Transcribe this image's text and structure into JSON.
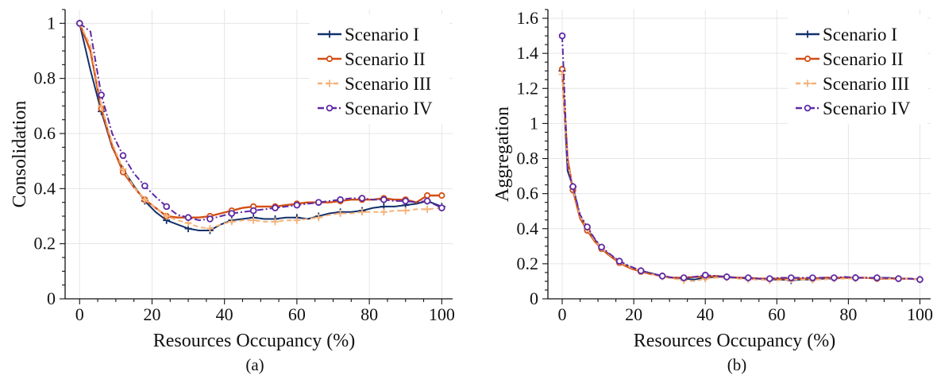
{
  "colors": {
    "scenario_1": "#12306b",
    "scenario_2": "#d34f14",
    "scenario_3": "#f5b27a",
    "scenario_4": "#5e2aa6"
  },
  "chart_data": [
    {
      "type": "line",
      "caption": "(a)",
      "xlabel": "Resources Occupancy (%)",
      "ylabel": "Consolidation",
      "xlim": [
        -4,
        103
      ],
      "ylim": [
        0,
        1.05
      ],
      "xticks": [
        0,
        20,
        40,
        60,
        80,
        100
      ],
      "yticks": [
        0,
        0.2,
        0.4,
        0.6,
        0.8,
        1
      ],
      "ytick_labels": [
        "0",
        "0.2",
        "0.4",
        "0.6",
        "0.8",
        "1"
      ],
      "grid": true,
      "legend_position": "top-right",
      "series": [
        {
          "name": "Scenario I",
          "marker": "plus",
          "dash": "solid",
          "x": [
            0,
            3,
            6,
            9,
            12,
            15,
            18,
            21,
            24,
            27,
            30,
            33,
            36,
            39,
            42,
            45,
            48,
            51,
            54,
            57,
            60,
            63,
            66,
            69,
            72,
            75,
            78,
            81,
            84,
            87,
            90,
            93,
            96,
            100
          ],
          "y": [
            1.0,
            0.83,
            0.68,
            0.55,
            0.47,
            0.41,
            0.355,
            0.315,
            0.285,
            0.27,
            0.255,
            0.248,
            0.248,
            0.27,
            0.285,
            0.29,
            0.295,
            0.29,
            0.29,
            0.295,
            0.295,
            0.29,
            0.3,
            0.31,
            0.315,
            0.315,
            0.32,
            0.33,
            0.335,
            0.335,
            0.34,
            0.345,
            0.355,
            0.335
          ]
        },
        {
          "name": "Scenario II",
          "marker": "circle-filled",
          "dash": "solid",
          "x": [
            0,
            3,
            6,
            9,
            12,
            15,
            18,
            21,
            24,
            27,
            30,
            33,
            36,
            39,
            42,
            45,
            48,
            51,
            54,
            57,
            60,
            63,
            66,
            69,
            72,
            75,
            78,
            81,
            84,
            87,
            90,
            93,
            96,
            100
          ],
          "y": [
            1.0,
            0.9,
            0.69,
            0.555,
            0.46,
            0.405,
            0.36,
            0.33,
            0.3,
            0.295,
            0.295,
            0.295,
            0.3,
            0.31,
            0.32,
            0.33,
            0.335,
            0.335,
            0.335,
            0.34,
            0.345,
            0.35,
            0.35,
            0.35,
            0.355,
            0.36,
            0.36,
            0.36,
            0.365,
            0.36,
            0.36,
            0.35,
            0.375,
            0.375
          ]
        },
        {
          "name": "Scenario III",
          "marker": "plus",
          "dash": "dashed",
          "x": [
            0,
            3,
            6,
            9,
            12,
            15,
            18,
            21,
            24,
            27,
            30,
            33,
            36,
            39,
            42,
            45,
            48,
            51,
            54,
            57,
            60,
            63,
            66,
            69,
            72,
            75,
            78,
            81,
            84,
            87,
            90,
            93,
            96,
            100
          ],
          "y": [
            1.0,
            0.92,
            0.7,
            0.565,
            0.47,
            0.405,
            0.36,
            0.33,
            0.3,
            0.285,
            0.275,
            0.26,
            0.255,
            0.27,
            0.28,
            0.285,
            0.285,
            0.28,
            0.28,
            0.285,
            0.285,
            0.29,
            0.295,
            0.305,
            0.31,
            0.31,
            0.315,
            0.315,
            0.315,
            0.32,
            0.32,
            0.325,
            0.325,
            0.33
          ]
        },
        {
          "name": "Scenario IV",
          "marker": "circle-open",
          "dash": "dashdot",
          "x": [
            0,
            3,
            6,
            9,
            12,
            15,
            18,
            21,
            24,
            27,
            30,
            33,
            36,
            39,
            42,
            45,
            48,
            51,
            54,
            57,
            60,
            63,
            66,
            69,
            72,
            75,
            78,
            81,
            84,
            87,
            90,
            93,
            96,
            100
          ],
          "y": [
            1.0,
            0.97,
            0.74,
            0.6,
            0.52,
            0.455,
            0.41,
            0.37,
            0.335,
            0.305,
            0.295,
            0.285,
            0.29,
            0.3,
            0.31,
            0.315,
            0.32,
            0.325,
            0.33,
            0.335,
            0.34,
            0.345,
            0.35,
            0.355,
            0.36,
            0.365,
            0.365,
            0.36,
            0.36,
            0.355,
            0.355,
            0.35,
            0.355,
            0.33
          ]
        }
      ]
    },
    {
      "type": "line",
      "caption": "(b)",
      "xlabel": "Resources Occupancy (%)",
      "ylabel": "Aggregation",
      "xlim": [
        -4,
        103
      ],
      "ylim": [
        0,
        1.65
      ],
      "xticks": [
        0,
        20,
        40,
        60,
        80,
        100
      ],
      "yticks": [
        0,
        0.2,
        0.4,
        0.6,
        0.8,
        1,
        1.2,
        1.4,
        1.6
      ],
      "ytick_labels": [
        "0",
        "0.2",
        "0.4",
        "0.6",
        "0.8",
        "1",
        "1.2",
        "1.4",
        "1.6"
      ],
      "grid": true,
      "legend_position": "top-right",
      "series": [
        {
          "name": "Scenario I",
          "marker": "plus",
          "dash": "solid",
          "x": [
            0,
            1.5,
            3,
            5,
            7,
            9,
            11,
            13,
            16,
            19,
            22,
            25,
            28,
            31,
            34,
            37,
            40,
            43,
            46,
            49,
            52,
            55,
            58,
            61,
            64,
            67,
            70,
            73,
            76,
            79,
            82,
            85,
            88,
            91,
            94,
            97,
            100
          ],
          "y": [
            1.3,
            0.73,
            0.64,
            0.47,
            0.4,
            0.34,
            0.29,
            0.255,
            0.21,
            0.18,
            0.16,
            0.145,
            0.13,
            0.12,
            0.115,
            0.11,
            0.12,
            0.125,
            0.125,
            0.12,
            0.115,
            0.115,
            0.11,
            0.11,
            0.105,
            0.11,
            0.11,
            0.115,
            0.115,
            0.12,
            0.12,
            0.12,
            0.12,
            0.12,
            0.115,
            0.115,
            0.11
          ]
        },
        {
          "name": "Scenario II",
          "marker": "circle-filled",
          "dash": "solid",
          "x": [
            0,
            1.5,
            3,
            5,
            7,
            9,
            11,
            13,
            16,
            19,
            22,
            25,
            28,
            31,
            34,
            37,
            40,
            43,
            46,
            49,
            52,
            55,
            58,
            61,
            64,
            67,
            70,
            73,
            76,
            79,
            82,
            85,
            88,
            91,
            94,
            97,
            100
          ],
          "y": [
            1.31,
            0.8,
            0.62,
            0.46,
            0.39,
            0.33,
            0.285,
            0.25,
            0.205,
            0.175,
            0.155,
            0.14,
            0.13,
            0.12,
            0.12,
            0.125,
            0.125,
            0.13,
            0.125,
            0.12,
            0.12,
            0.115,
            0.115,
            0.115,
            0.115,
            0.115,
            0.115,
            0.12,
            0.12,
            0.12,
            0.12,
            0.12,
            0.115,
            0.115,
            0.115,
            0.115,
            0.11
          ]
        },
        {
          "name": "Scenario III",
          "marker": "plus",
          "dash": "dashed",
          "x": [
            0,
            1.5,
            3,
            5,
            7,
            9,
            11,
            13,
            16,
            19,
            22,
            25,
            28,
            31,
            34,
            37,
            40,
            43,
            46,
            49,
            52,
            55,
            58,
            61,
            64,
            67,
            70,
            73,
            76,
            79,
            82,
            85,
            88,
            91,
            94,
            97,
            100
          ],
          "y": [
            1.28,
            0.78,
            0.63,
            0.47,
            0.4,
            0.335,
            0.29,
            0.255,
            0.21,
            0.18,
            0.16,
            0.14,
            0.125,
            0.115,
            0.105,
            0.1,
            0.115,
            0.12,
            0.12,
            0.115,
            0.11,
            0.11,
            0.105,
            0.105,
            0.11,
            0.11,
            0.11,
            0.11,
            0.115,
            0.115,
            0.115,
            0.12,
            0.12,
            0.115,
            0.115,
            0.115,
            0.11
          ]
        },
        {
          "name": "Scenario IV",
          "marker": "circle-open",
          "dash": "dashdot",
          "x": [
            0,
            1.5,
            3,
            5,
            7,
            9,
            11,
            13,
            16,
            19,
            22,
            25,
            28,
            31,
            34,
            37,
            40,
            43,
            46,
            49,
            52,
            55,
            58,
            61,
            64,
            67,
            70,
            73,
            76,
            79,
            82,
            85,
            88,
            91,
            94,
            97,
            100
          ],
          "y": [
            1.5,
            0.74,
            0.64,
            0.48,
            0.41,
            0.345,
            0.295,
            0.26,
            0.215,
            0.185,
            0.16,
            0.145,
            0.13,
            0.12,
            0.12,
            0.125,
            0.135,
            0.13,
            0.125,
            0.12,
            0.12,
            0.115,
            0.115,
            0.12,
            0.12,
            0.12,
            0.12,
            0.12,
            0.12,
            0.125,
            0.12,
            0.12,
            0.12,
            0.12,
            0.115,
            0.115,
            0.11
          ]
        }
      ]
    }
  ]
}
